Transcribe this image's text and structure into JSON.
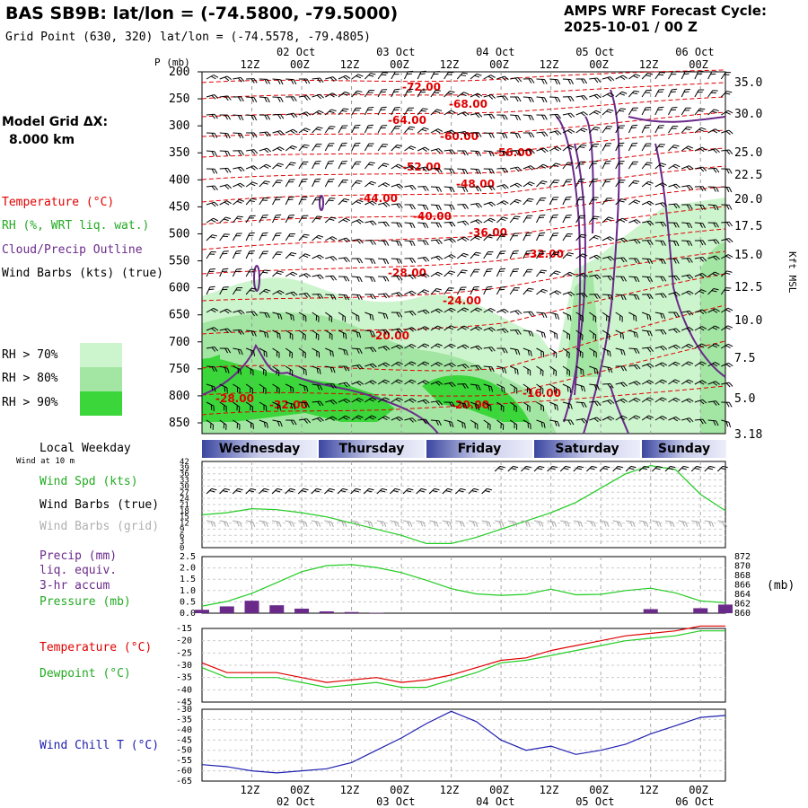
{
  "header": {
    "title": "BAS SB9B:  lat/lon = (-74.5800, -79.5000)",
    "grid_point": "Grid Point (630, 320) lat/lon = (-74.5578, -79.4805)",
    "cycle_label": "AMPS WRF Forecast Cycle:",
    "cycle_value": "2025-10-01 / 00  Z"
  },
  "left_legend": {
    "model_grid": "Model Grid ΔX:",
    "model_grid_value": "8.000 km",
    "temperature": "Temperature (°C)",
    "rh": "RH (%, WRT liq. wat.)",
    "cloud": "Cloud/Precip Outline",
    "wind": "Wind Barbs (kts) (true)",
    "rh70": "RH > 70%",
    "rh80": "RH > 80%",
    "rh90": "RH > 90%",
    "local_weekday": "Local Weekday",
    "wind_10m": "Wind at 10 m",
    "wind_spd": "Wind Spd (kts)",
    "wind_barbs_true": "Wind Barbs (true)",
    "wind_barbs_grid": "Wind Barbs (grid)",
    "precip": "Precip (mm)",
    "liq": "liq. equiv.",
    "accum": "3-hr accum",
    "pressure": "Pressure (mb)",
    "temp2": "Temperature (°C)",
    "dewpoint": "Dewpoint (°C)",
    "windchill": "Wind Chill T (°C)",
    "mb_unit": "(mb)",
    "p_label": "P (mb)",
    "kft": "Kft MSL"
  },
  "colors": {
    "temp": "#e00000",
    "rh": "#22cc22",
    "cloud": "#6a2a8a",
    "wind": "#000000",
    "grid_barbs": "#a8a8a8",
    "rh70": "#cdf5cd",
    "rh80": "#a3e6a3",
    "rh90": "#3ad63a",
    "windchill": "#2020b0"
  },
  "chart_data": [
    {
      "type": "contour",
      "name": "cross-section",
      "x_ticks_top": [
        "12Z",
        "00Z",
        "12Z",
        "00Z",
        "12Z",
        "00Z",
        "12Z",
        "00Z",
        "12Z",
        "00Z"
      ],
      "x_dates_top": [
        "02 Oct",
        "03 Oct",
        "04 Oct",
        "05 Oct",
        "06 Oct"
      ],
      "y_ticks": [
        200,
        250,
        300,
        350,
        400,
        450,
        500,
        550,
        600,
        650,
        700,
        750,
        800,
        850
      ],
      "right_ticks": [
        "35.0",
        "30.0",
        "25.0",
        "22.5",
        "20.0",
        "17.5",
        "15.0",
        "12.5",
        "10.0",
        "7.5",
        "5.0",
        "3.18"
      ],
      "temp_labels": [
        "-72.00",
        "-68.00",
        "-64.00",
        "-60.00",
        "-56.00",
        "-52.00",
        "-48.00",
        "-44.00",
        "-40.00",
        "-36.00",
        "-32.00",
        "-28.00",
        "-24.00",
        "-20.00",
        "-16.00",
        "-20.00",
        "-28.00",
        "-32.00"
      ]
    },
    {
      "type": "line",
      "name": "wind-speed",
      "weekdays": [
        "Wednesday",
        "Thursday",
        "Friday",
        "Saturday",
        "Sunday"
      ],
      "y_ticks": [
        "42",
        "39",
        "36",
        "33",
        "30",
        "27",
        "24",
        "21",
        "18",
        "15",
        "12",
        "9",
        "6",
        "3",
        "0"
      ],
      "hours": [
        0,
        6,
        12,
        18,
        24,
        30,
        36,
        42,
        48,
        54,
        60,
        66,
        72,
        78,
        84,
        90,
        96,
        102,
        108,
        114,
        120,
        126
      ],
      "speed_kts": [
        16,
        17,
        19,
        18.5,
        17,
        15,
        12,
        9,
        6,
        2,
        2,
        5,
        9,
        13,
        17,
        22,
        29,
        36,
        40,
        38,
        26,
        18
      ]
    },
    {
      "type": "line",
      "name": "precip-pressure",
      "y_left": [
        "2.5",
        "2.0",
        "1.5",
        "1.0",
        "0.5",
        "0.0"
      ],
      "y_right": [
        "872",
        "870",
        "868",
        "866",
        "864",
        "862",
        "860"
      ],
      "hours": [
        0,
        6,
        12,
        18,
        24,
        30,
        36,
        42,
        48,
        54,
        60,
        66,
        72,
        78,
        84,
        90,
        96,
        102,
        108,
        114,
        120,
        126
      ],
      "pressure_mb": [
        861.5,
        862.5,
        864.2,
        866.5,
        868.8,
        870.1,
        870.3,
        869.7,
        868.6,
        867.0,
        865.2,
        864.1,
        863.8,
        864.0,
        865.1,
        863.9,
        864.0,
        864.8,
        865.3,
        864.3,
        862.6,
        862.2
      ],
      "precip_mm": [
        0.15,
        0.3,
        0.55,
        0.35,
        0.2,
        0.08,
        0.05,
        0.02,
        0,
        0,
        0,
        0,
        0,
        0,
        0,
        0,
        0,
        0,
        0.18,
        0,
        0.22,
        0.38
      ]
    },
    {
      "type": "line",
      "name": "temperature-dewpoint",
      "y_ticks": [
        "-15",
        "-20",
        "-25",
        "-30",
        "-35",
        "-40",
        "-45"
      ],
      "hours": [
        0,
        6,
        12,
        18,
        24,
        30,
        36,
        42,
        48,
        54,
        60,
        66,
        72,
        78,
        84,
        90,
        96,
        102,
        108,
        114,
        120,
        126
      ],
      "temperature_c": [
        -29,
        -33,
        -33,
        -33,
        -35,
        -37,
        -36,
        -35,
        -37,
        -36,
        -34,
        -31,
        -28,
        -27,
        -24,
        -22,
        -20,
        -18,
        -17,
        -16,
        -14,
        -14
      ],
      "dewpoint_c": [
        -31,
        -35,
        -35,
        -35,
        -37,
        -39,
        -38,
        -37,
        -39,
        -39,
        -36,
        -33,
        -29,
        -28,
        -26,
        -24,
        -22,
        -20,
        -19,
        -18,
        -16,
        -16
      ]
    },
    {
      "type": "line",
      "name": "wind-chill",
      "y_ticks": [
        "-30",
        "-35",
        "-40",
        "-45",
        "-50",
        "-55",
        "-60",
        "-65"
      ],
      "x_ticks_bottom": [
        "12Z",
        "00Z",
        "12Z",
        "00Z",
        "12Z",
        "00Z",
        "12Z",
        "00Z",
        "12Z",
        "00Z"
      ],
      "x_dates_bottom": [
        "02 Oct",
        "03 Oct",
        "04 Oct",
        "05 Oct",
        "06 Oct"
      ],
      "hours": [
        0,
        6,
        12,
        18,
        24,
        30,
        36,
        42,
        48,
        54,
        60,
        66,
        72,
        78,
        84,
        90,
        96,
        102,
        108,
        114,
        120,
        126
      ],
      "windchill_c": [
        -57,
        -58,
        -60,
        -61,
        -60,
        -59,
        -56,
        -50,
        -44,
        -37,
        -31,
        -36,
        -45,
        -50,
        -48,
        -52,
        -50,
        -47,
        -42,
        -38,
        -34,
        -33
      ]
    }
  ]
}
